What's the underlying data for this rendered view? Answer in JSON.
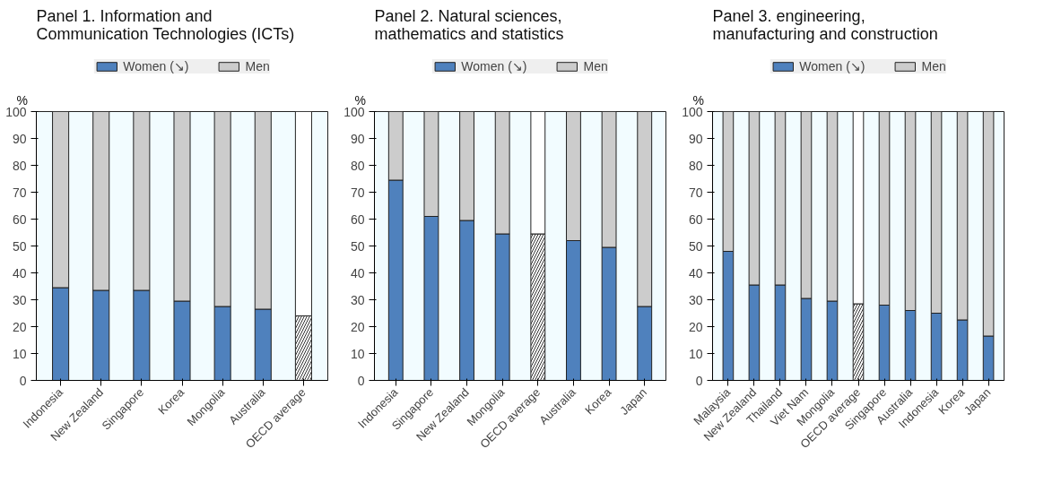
{
  "chart_data": [
    {
      "type": "bar",
      "stacked": true,
      "title": "Panel 1. Information and Communication Technologies (ICTs)",
      "ylabel": "%",
      "categories": [
        "Indonesia",
        "New Zealand",
        "Singapore",
        "Korea",
        "Mongolia",
        "Australia",
        "OECD average"
      ],
      "ylim": [
        0,
        100
      ],
      "yticks": [
        0,
        10,
        20,
        30,
        40,
        50,
        60,
        70,
        80,
        90,
        100
      ],
      "legend": "top",
      "grid": false,
      "series": [
        {
          "name": "Women (↘)",
          "color": "#4f81bd",
          "colors": [
            "#4f81bd",
            "#4f81bd",
            "#4f81bd",
            "#4f81bd",
            "#4f81bd",
            "#4f81bd",
            "#ffffff"
          ],
          "values": [
            34.5,
            33.5,
            33.5,
            29.5,
            27.5,
            26.5,
            24
          ]
        },
        {
          "name": "Men",
          "color": "#cccccc",
          "colors": [
            "#cccccc",
            "#cccccc",
            "#cccccc",
            "#cccccc",
            "#cccccc",
            "#cccccc",
            "#ffffff"
          ],
          "values": [
            65.5,
            66.5,
            66.5,
            70.5,
            72.5,
            73.5,
            76
          ]
        }
      ]
    },
    {
      "type": "bar",
      "stacked": true,
      "title": "Panel 2. Natural sciences, mathematics and statistics",
      "ylabel": "%",
      "categories": [
        "Indonesia",
        "Singapore",
        "New Zealand",
        "Mongolia",
        "OECD average",
        "Australia",
        "Korea",
        "Japan"
      ],
      "ylim": [
        0,
        100
      ],
      "yticks": [
        0,
        10,
        20,
        30,
        40,
        50,
        60,
        70,
        80,
        90,
        100
      ],
      "legend": "top",
      "grid": false,
      "series": [
        {
          "name": "Women (↘)",
          "color": "#4f81bd",
          "colors": [
            "#4f81bd",
            "#4f81bd",
            "#4f81bd",
            "#4f81bd",
            "#ffffff",
            "#4f81bd",
            "#4f81bd",
            "#4f81bd"
          ],
          "values": [
            74.5,
            61,
            59.5,
            54.5,
            54.5,
            52,
            49.5,
            27.5
          ]
        },
        {
          "name": "Men",
          "color": "#cccccc",
          "colors": [
            "#cccccc",
            "#cccccc",
            "#cccccc",
            "#cccccc",
            "#ffffff",
            "#cccccc",
            "#cccccc",
            "#cccccc"
          ],
          "values": [
            25.5,
            39,
            40.5,
            45.5,
            45.5,
            48,
            50.5,
            72.5
          ]
        }
      ]
    },
    {
      "type": "bar",
      "stacked": true,
      "title": "Panel 3. engineering, manufacturing and construction",
      "ylabel": "%",
      "categories": [
        "Malaysia",
        "New Zealand",
        "Thailand",
        "Viet Nam",
        "Mongolia",
        "OECD average",
        "Singapore",
        "Australia",
        "Indonesia",
        "Korea",
        "Japan"
      ],
      "ylim": [
        0,
        100
      ],
      "yticks": [
        0,
        10,
        20,
        30,
        40,
        50,
        60,
        70,
        80,
        90,
        100
      ],
      "legend": "top",
      "grid": false,
      "series": [
        {
          "name": "Women (↘)",
          "color": "#4f81bd",
          "colors": [
            "#4f81bd",
            "#4f81bd",
            "#4f81bd",
            "#4f81bd",
            "#4f81bd",
            "#ffffff",
            "#4f81bd",
            "#4f81bd",
            "#4f81bd",
            "#4f81bd",
            "#4f81bd"
          ],
          "values": [
            48,
            35.5,
            35.5,
            30.5,
            29.5,
            28.5,
            28,
            26,
            25,
            22.5,
            16.5
          ]
        },
        {
          "name": "Men",
          "color": "#cccccc",
          "colors": [
            "#cccccc",
            "#cccccc",
            "#cccccc",
            "#cccccc",
            "#cccccc",
            "#ffffff",
            "#cccccc",
            "#cccccc",
            "#cccccc",
            "#cccccc",
            "#cccccc"
          ],
          "values": [
            52,
            64.5,
            64.5,
            69.5,
            70.5,
            71.5,
            72,
            74,
            75,
            77.5,
            83.5
          ]
        }
      ]
    }
  ]
}
